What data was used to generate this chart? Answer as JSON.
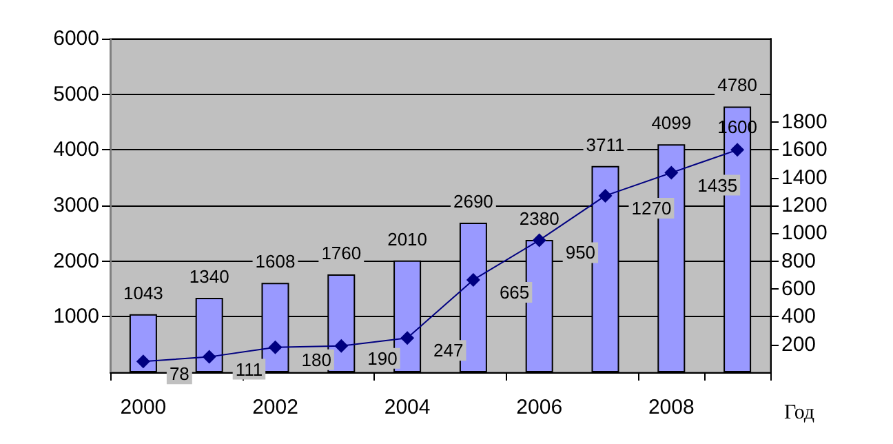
{
  "chart_data": {
    "type": "bar",
    "xlabel": "Год",
    "categories": [
      "2000",
      null,
      "2002",
      null,
      "2004",
      null,
      "2006",
      null,
      "2008",
      null
    ],
    "series": [
      {
        "color": "#9999ff",
        "values": [
          1043,
          1340,
          1608,
          1760,
          2010,
          2690,
          2380,
          3711,
          4099,
          4780
        ]
      },
      {
        "type": "line",
        "axis": "y2",
        "color": "#000080",
        "values": [
          78,
          111,
          180,
          190,
          247,
          665,
          950,
          1270,
          1435,
          1600
        ]
      }
    ],
    "ylim": [
      0,
      6000
    ],
    "yticks": [
      1000,
      2000,
      3000,
      4000,
      5000,
      6000
    ],
    "y2lim": [
      0,
      2400
    ],
    "y2ticks": [
      200,
      400,
      600,
      800,
      1000,
      1200,
      1400,
      1600,
      1800
    ],
    "grid": "y",
    "marker": "diamond",
    "line_style": "solid",
    "data_labels": true
  }
}
